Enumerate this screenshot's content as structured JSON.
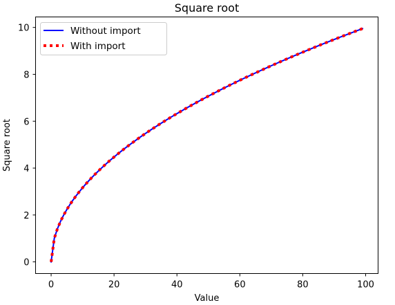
{
  "chart_data": {
    "type": "line",
    "title": "Square root",
    "xlabel": "Value",
    "ylabel": "Square root",
    "xlim": [
      -4.95,
      103.95
    ],
    "ylim": [
      -0.4975,
      10.4475
    ],
    "xticks": [
      0,
      20,
      40,
      60,
      80,
      100
    ],
    "yticks": [
      0,
      2,
      4,
      6,
      8,
      10
    ],
    "grid": false,
    "legend_position": "upper-left",
    "series": [
      {
        "name": "Without import",
        "color": "#0000ff",
        "style": "solid",
        "x": [
          0,
          1,
          2,
          3,
          4,
          5,
          6,
          7,
          8,
          9,
          10,
          11,
          12,
          13,
          14,
          15,
          16,
          17,
          18,
          19,
          20,
          21,
          22,
          23,
          24,
          25,
          26,
          27,
          28,
          29,
          30,
          31,
          32,
          33,
          34,
          35,
          36,
          37,
          38,
          39,
          40,
          41,
          42,
          43,
          44,
          45,
          46,
          47,
          48,
          49,
          50,
          51,
          52,
          53,
          54,
          55,
          56,
          57,
          58,
          59,
          60,
          61,
          62,
          63,
          64,
          65,
          66,
          67,
          68,
          69,
          70,
          71,
          72,
          73,
          74,
          75,
          76,
          77,
          78,
          79,
          80,
          81,
          82,
          83,
          84,
          85,
          86,
          87,
          88,
          89,
          90,
          91,
          92,
          93,
          94,
          95,
          96,
          97,
          98,
          99
        ],
        "y": [
          0,
          1,
          1.414,
          1.732,
          2,
          2.236,
          2.449,
          2.646,
          2.828,
          3,
          3.162,
          3.317,
          3.464,
          3.606,
          3.742,
          3.873,
          4,
          4.123,
          4.243,
          4.359,
          4.472,
          4.583,
          4.69,
          4.796,
          4.899,
          5,
          5.099,
          5.196,
          5.292,
          5.385,
          5.477,
          5.568,
          5.657,
          5.745,
          5.831,
          5.916,
          6,
          6.083,
          6.164,
          6.245,
          6.325,
          6.403,
          6.481,
          6.557,
          6.633,
          6.708,
          6.782,
          6.856,
          6.928,
          7,
          7.071,
          7.141,
          7.211,
          7.28,
          7.348,
          7.416,
          7.483,
          7.55,
          7.616,
          7.681,
          7.746,
          7.81,
          7.874,
          7.937,
          8,
          8.062,
          8.124,
          8.185,
          8.246,
          8.307,
          8.367,
          8.426,
          8.485,
          8.544,
          8.602,
          8.66,
          8.718,
          8.775,
          8.832,
          8.888,
          8.944,
          9,
          9.055,
          9.11,
          9.165,
          9.22,
          9.274,
          9.327,
          9.381,
          9.434,
          9.487,
          9.539,
          9.592,
          9.644,
          9.695,
          9.747,
          9.798,
          9.849,
          9.899,
          9.95
        ]
      },
      {
        "name": "With import",
        "color": "#ff0000",
        "style": "dotted",
        "x": [
          0,
          1,
          2,
          3,
          4,
          5,
          6,
          7,
          8,
          9,
          10,
          11,
          12,
          13,
          14,
          15,
          16,
          17,
          18,
          19,
          20,
          21,
          22,
          23,
          24,
          25,
          26,
          27,
          28,
          29,
          30,
          31,
          32,
          33,
          34,
          35,
          36,
          37,
          38,
          39,
          40,
          41,
          42,
          43,
          44,
          45,
          46,
          47,
          48,
          49,
          50,
          51,
          52,
          53,
          54,
          55,
          56,
          57,
          58,
          59,
          60,
          61,
          62,
          63,
          64,
          65,
          66,
          67,
          68,
          69,
          70,
          71,
          72,
          73,
          74,
          75,
          76,
          77,
          78,
          79,
          80,
          81,
          82,
          83,
          84,
          85,
          86,
          87,
          88,
          89,
          90,
          91,
          92,
          93,
          94,
          95,
          96,
          97,
          98,
          99
        ],
        "y": [
          0,
          1,
          1.414,
          1.732,
          2,
          2.236,
          2.449,
          2.646,
          2.828,
          3,
          3.162,
          3.317,
          3.464,
          3.606,
          3.742,
          3.873,
          4,
          4.123,
          4.243,
          4.359,
          4.472,
          4.583,
          4.69,
          4.796,
          4.899,
          5,
          5.099,
          5.196,
          5.292,
          5.385,
          5.477,
          5.568,
          5.657,
          5.745,
          5.831,
          5.916,
          6,
          6.083,
          6.164,
          6.245,
          6.325,
          6.403,
          6.481,
          6.557,
          6.633,
          6.708,
          6.782,
          6.856,
          6.928,
          7,
          7.071,
          7.141,
          7.211,
          7.28,
          7.348,
          7.416,
          7.483,
          7.55,
          7.616,
          7.681,
          7.746,
          7.81,
          7.874,
          7.937,
          8,
          8.062,
          8.124,
          8.185,
          8.246,
          8.307,
          8.367,
          8.426,
          8.485,
          8.544,
          8.602,
          8.66,
          8.718,
          8.775,
          8.832,
          8.888,
          8.944,
          9,
          9.055,
          9.11,
          9.165,
          9.22,
          9.274,
          9.327,
          9.381,
          9.434,
          9.487,
          9.539,
          9.592,
          9.644,
          9.695,
          9.747,
          9.798,
          9.849,
          9.899,
          9.95
        ]
      }
    ]
  }
}
